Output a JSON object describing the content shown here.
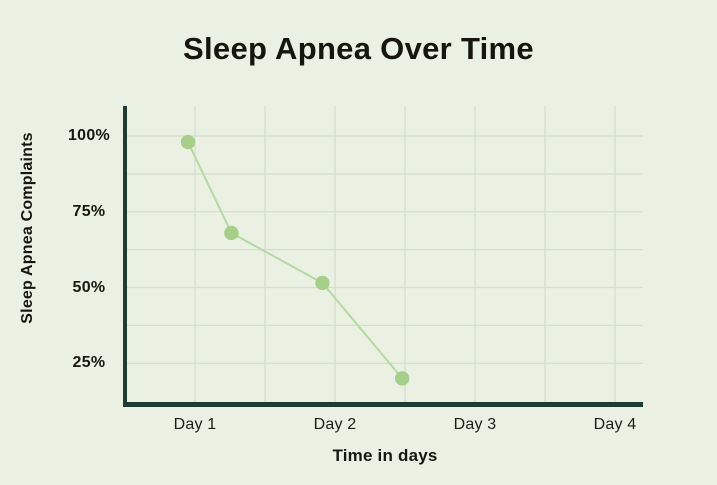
{
  "title": "Sleep Apnea Over Time",
  "colors": {
    "background": "#eaf1e2",
    "axis": "#1e3c34",
    "gridline": "#d4ddd0",
    "line": "#b6d8a1",
    "marker": "#a6cf89",
    "text": "#16160f"
  },
  "chart_data": {
    "type": "line",
    "title": "Sleep Apnea Over Time",
    "xlabel": "Time in days",
    "ylabel": "Sleep Apnea Complaints",
    "x_tick_labels": [
      "Day 1",
      "Day 2",
      "Day 3",
      "Day 4"
    ],
    "x_tick_days": [
      1,
      2,
      3,
      4
    ],
    "y_tick_labels": [
      "100%",
      "75%",
      "50%",
      "25%"
    ],
    "y_tick_values": [
      100,
      75,
      50,
      25
    ],
    "x_gridline_days": [
      1,
      1.5,
      2,
      2.5,
      3,
      3.5,
      4
    ],
    "y_gridline_values": [
      100,
      87.5,
      75,
      62.5,
      50,
      37.5,
      25
    ],
    "xlim_days": [
      0.5,
      4.2
    ],
    "ylim_percent": [
      12,
      110
    ],
    "grid": true,
    "legend": false,
    "series": [
      {
        "name": "Sleep Apnea Complaints",
        "x_days": [
          0.95,
          1.26,
          1.91,
          2.48
        ],
        "values": [
          98,
          68,
          51.5,
          20
        ]
      }
    ]
  }
}
